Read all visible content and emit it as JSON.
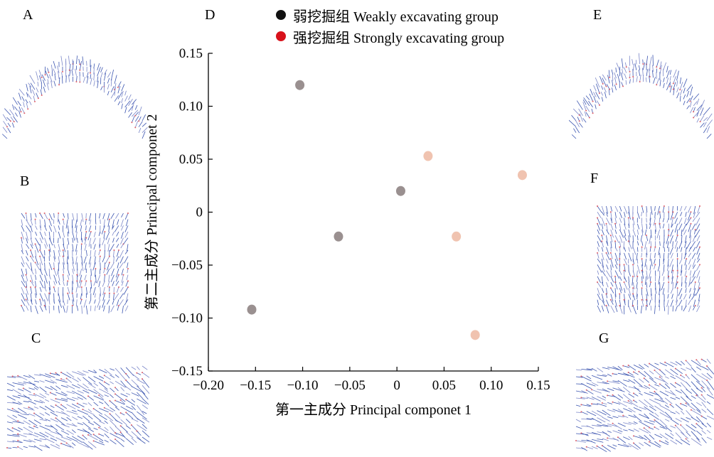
{
  "panels": {
    "A": "A",
    "B": "B",
    "C": "C",
    "D": "D",
    "E": "E",
    "F": "F",
    "G": "G"
  },
  "legend": [
    {
      "label": "弱挖掘组 Weakly excavating group",
      "color": "#111111"
    },
    {
      "label": "强挖掘组 Strongly excavating group",
      "color": "#d8121b"
    }
  ],
  "chart_data": {
    "type": "scatter",
    "title": "",
    "xlabel": "第一主成分 Principal componet 1",
    "ylabel": "第二主成分 Principal componet 2",
    "xlim": [
      -0.2,
      0.15
    ],
    "ylim": [
      -0.15,
      0.15
    ],
    "xticks": [
      "−0.20",
      "−0.15",
      "−0.10",
      "−0.05",
      "0",
      "0.05",
      "0.10",
      "0.15"
    ],
    "yticks": [
      "0.15",
      "0.10",
      "0.05",
      "0",
      "−0.05",
      "−0.10",
      "−0.15"
    ],
    "series": [
      {
        "name": "弱挖掘组 Weakly excavating group",
        "color": "#9a9090",
        "points": [
          [
            -0.103,
            0.12
          ],
          [
            0.004,
            0.02
          ],
          [
            -0.062,
            -0.023
          ],
          [
            -0.154,
            -0.092
          ]
        ]
      },
      {
        "name": "强挖掘组 Strongly excavating group",
        "color": "#f0c3b0",
        "points": [
          [
            0.033,
            0.053
          ],
          [
            0.133,
            0.035
          ],
          [
            0.063,
            -0.023
          ],
          [
            0.083,
            -0.116
          ]
        ]
      }
    ],
    "grid": false,
    "legend_position": "top-center"
  }
}
